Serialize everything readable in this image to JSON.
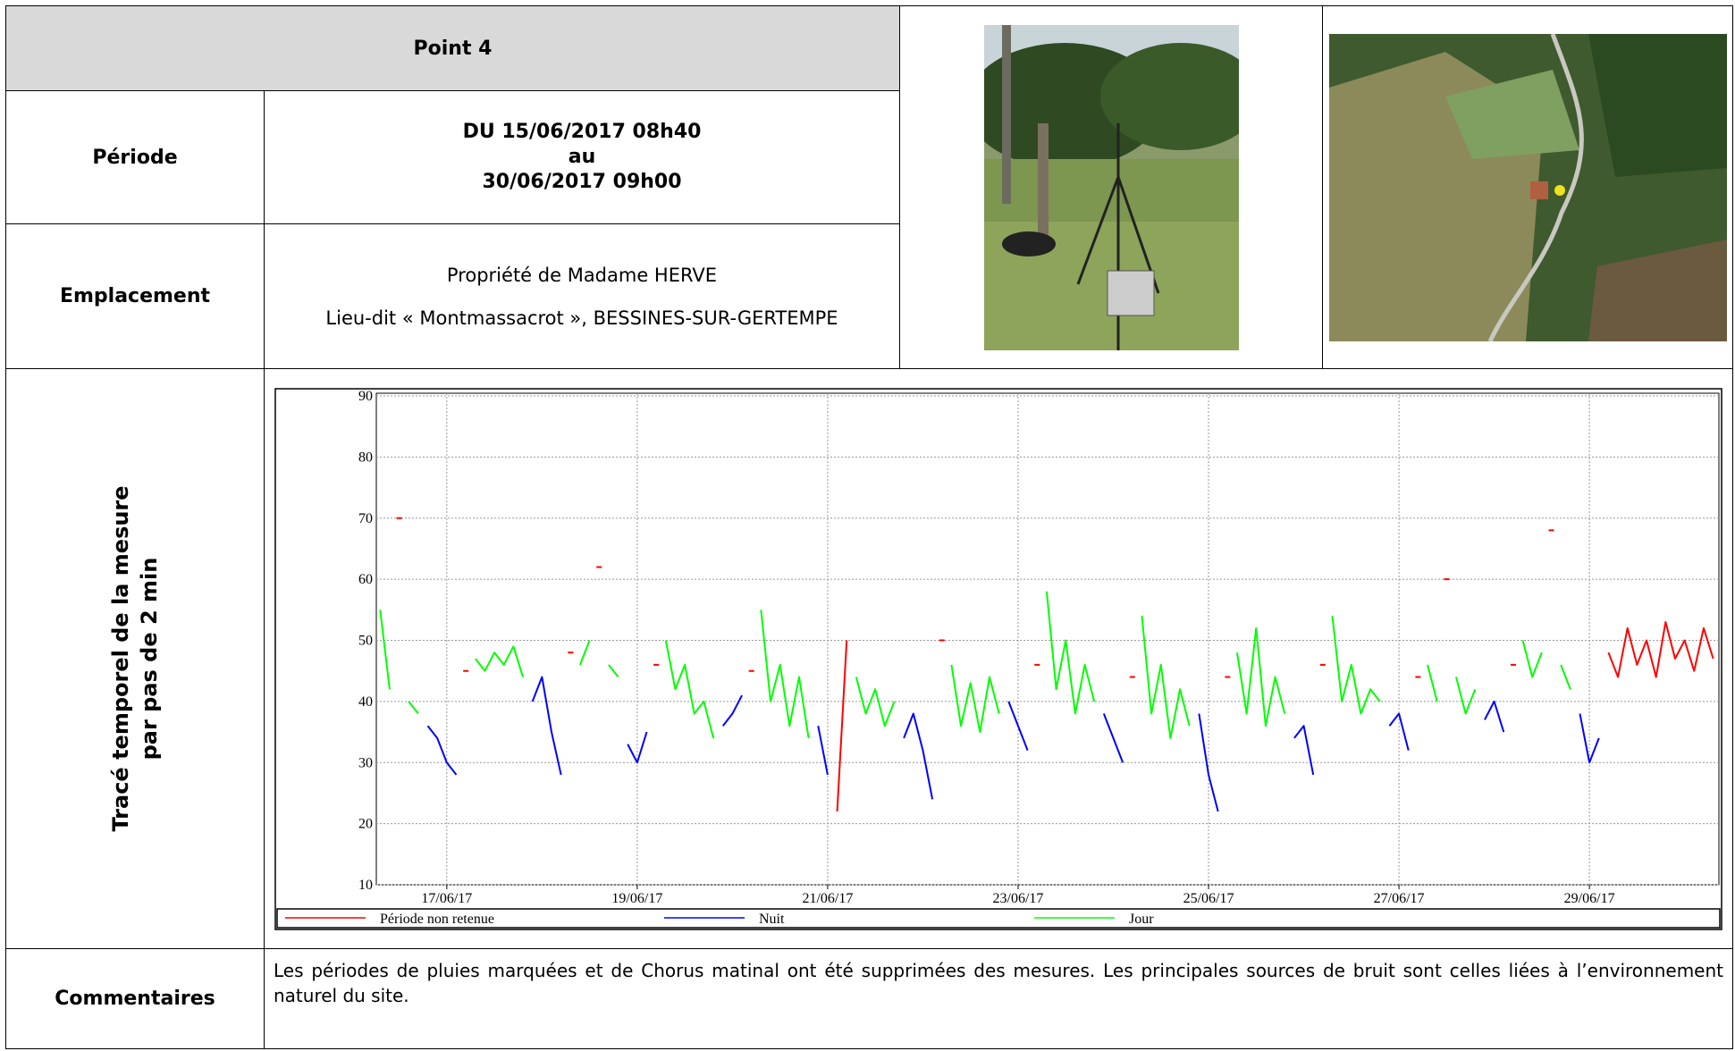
{
  "header": {
    "title": "Point 4"
  },
  "rows": [
    {
      "label": "Période",
      "lines": [
        "DU 15/06/2017 08h40",
        "au",
        "30/06/2017 09h00"
      ]
    },
    {
      "label": "Emplacement",
      "lines": [
        "Propriété de Madame HERVE",
        "Lieu-dit « Montmassacrot », BESSINES-SUR-GERTEMPE"
      ]
    }
  ],
  "chart_row": {
    "label_lines": [
      "Tracé temporel de la mesure",
      "par pas de 2 min"
    ]
  },
  "chart_data": {
    "type": "line",
    "x": [
      16.3,
      16.4,
      16.5,
      16.6,
      16.7,
      16.8,
      16.9,
      17.0,
      17.1,
      17.2,
      17.3,
      17.4,
      17.5,
      17.6,
      17.7,
      17.8,
      17.9,
      18.0,
      18.1,
      18.2,
      18.3,
      18.4,
      18.5,
      18.6,
      18.7,
      18.8,
      18.9,
      19.0,
      19.1,
      19.2,
      19.3,
      19.4,
      19.5,
      19.6,
      19.7,
      19.8,
      19.9,
      20.0,
      20.1,
      20.2,
      20.3,
      20.4,
      20.5,
      20.6,
      20.7,
      20.8,
      20.9,
      21.0,
      21.1,
      21.2,
      21.3,
      21.4,
      21.5,
      21.6,
      21.7,
      21.8,
      21.9,
      22.0,
      22.1,
      22.2,
      22.3,
      22.4,
      22.5,
      22.6,
      22.7,
      22.8,
      22.9,
      23.0,
      23.1,
      23.2,
      23.3,
      23.4,
      23.5,
      23.6,
      23.7,
      23.8,
      23.9,
      24.0,
      24.1,
      24.2,
      24.3,
      24.4,
      24.5,
      24.6,
      24.7,
      24.8,
      24.9,
      25.0,
      25.1,
      25.2,
      25.3,
      25.4,
      25.5,
      25.6,
      25.7,
      25.8,
      25.9,
      26.0,
      26.1,
      26.2,
      26.3,
      26.4,
      26.5,
      26.6,
      26.7,
      26.8,
      26.9,
      27.0,
      27.1,
      27.2,
      27.3,
      27.4,
      27.5,
      27.6,
      27.7,
      27.8,
      27.9,
      28.0,
      28.1,
      28.2,
      28.3,
      28.4,
      28.5,
      28.6,
      28.7,
      28.8,
      28.9,
      29.0,
      29.1,
      29.2,
      29.3,
      29.4,
      29.5,
      29.6,
      29.7,
      29.8,
      29.9,
      30.0,
      30.1,
      30.2,
      30.3
    ],
    "series": [
      {
        "name": "Période non retenue",
        "color": "#ff0000",
        "values": [
          null,
          null,
          70,
          null,
          null,
          null,
          null,
          null,
          null,
          45,
          null,
          null,
          null,
          null,
          null,
          null,
          null,
          null,
          null,
          null,
          48,
          null,
          null,
          62,
          null,
          null,
          null,
          null,
          null,
          46,
          null,
          null,
          null,
          null,
          null,
          null,
          null,
          null,
          null,
          45,
          null,
          null,
          null,
          null,
          null,
          null,
          null,
          null,
          22,
          50,
          null,
          null,
          null,
          null,
          null,
          null,
          null,
          null,
          null,
          50,
          null,
          null,
          null,
          null,
          null,
          null,
          null,
          null,
          null,
          46,
          null,
          null,
          null,
          null,
          null,
          null,
          null,
          null,
          null,
          44,
          null,
          null,
          null,
          null,
          null,
          null,
          null,
          null,
          null,
          44,
          null,
          null,
          null,
          null,
          null,
          null,
          null,
          null,
          null,
          46,
          null,
          null,
          null,
          null,
          null,
          null,
          null,
          null,
          null,
          44,
          null,
          null,
          60,
          null,
          null,
          null,
          null,
          null,
          null,
          46,
          null,
          null,
          null,
          68,
          null,
          null,
          null,
          null,
          null,
          48,
          44,
          52,
          46,
          50,
          44,
          53,
          47,
          50,
          45,
          52,
          47
        ]
      },
      {
        "name": "Nuit",
        "color": "#0000ff",
        "values": [
          null,
          null,
          null,
          null,
          null,
          36,
          34,
          30,
          28,
          null,
          null,
          null,
          null,
          null,
          null,
          null,
          40,
          44,
          35,
          28,
          null,
          null,
          null,
          null,
          null,
          null,
          33,
          30,
          35,
          null,
          null,
          null,
          null,
          null,
          null,
          null,
          36,
          38,
          41,
          null,
          null,
          null,
          null,
          null,
          null,
          null,
          36,
          28,
          null,
          null,
          null,
          null,
          null,
          null,
          null,
          34,
          38,
          32,
          24,
          null,
          null,
          null,
          null,
          null,
          null,
          null,
          40,
          36,
          32,
          null,
          null,
          null,
          null,
          null,
          null,
          null,
          38,
          34,
          30,
          null,
          null,
          null,
          null,
          null,
          null,
          null,
          38,
          28,
          22,
          null,
          null,
          null,
          null,
          null,
          null,
          null,
          34,
          36,
          28,
          null,
          null,
          null,
          null,
          null,
          null,
          null,
          36,
          38,
          32,
          null,
          null,
          null,
          null,
          null,
          null,
          null,
          37,
          40,
          35,
          null,
          null,
          null,
          null,
          null,
          null,
          null,
          38,
          30,
          34,
          null,
          null,
          null,
          null,
          null,
          null,
          null,
          null,
          null,
          null,
          null,
          null
        ]
      },
      {
        "name": "Jour",
        "color": "#00ff00",
        "values": [
          55,
          42,
          null,
          40,
          38,
          null,
          null,
          null,
          null,
          null,
          47,
          45,
          48,
          46,
          49,
          44,
          null,
          null,
          null,
          null,
          null,
          46,
          50,
          null,
          46,
          44,
          null,
          null,
          null,
          null,
          50,
          42,
          46,
          38,
          40,
          34,
          null,
          null,
          null,
          null,
          55,
          40,
          46,
          36,
          44,
          34,
          null,
          null,
          null,
          null,
          44,
          38,
          42,
          36,
          40,
          null,
          null,
          null,
          null,
          null,
          46,
          36,
          43,
          35,
          44,
          38,
          null,
          null,
          null,
          null,
          58,
          42,
          50,
          38,
          46,
          40,
          null,
          null,
          null,
          null,
          54,
          38,
          46,
          34,
          42,
          36,
          null,
          null,
          null,
          null,
          48,
          38,
          52,
          36,
          44,
          38,
          null,
          null,
          null,
          null,
          54,
          40,
          46,
          38,
          42,
          40,
          null,
          null,
          null,
          null,
          46,
          40,
          null,
          44,
          38,
          42,
          null,
          null,
          null,
          null,
          50,
          44,
          48,
          null,
          46,
          42,
          null,
          null,
          null,
          null,
          null,
          null,
          null,
          null,
          null,
          null,
          null,
          null,
          null,
          null,
          null
        ]
      }
    ],
    "xlim": [
      16.26,
      30.36
    ],
    "ylim": [
      10,
      90
    ],
    "xticks": [
      {
        "value": 17,
        "label": "17/06/17"
      },
      {
        "value": 19,
        "label": "19/06/17"
      },
      {
        "value": 21,
        "label": "21/06/17"
      },
      {
        "value": 23,
        "label": "23/06/17"
      },
      {
        "value": 25,
        "label": "25/06/17"
      },
      {
        "value": 27,
        "label": "27/06/17"
      },
      {
        "value": 29,
        "label": "29/06/17"
      }
    ],
    "yticks": [
      10,
      20,
      30,
      40,
      50,
      60,
      70,
      80,
      90
    ],
    "grid": true
  },
  "comments": {
    "label": "Commentaires",
    "text": "Les périodes de pluies marquées et de Chorus matinal ont été supprimées des mesures. Les principales sources de bruit sont celles liées à l’environnement naturel du site."
  }
}
